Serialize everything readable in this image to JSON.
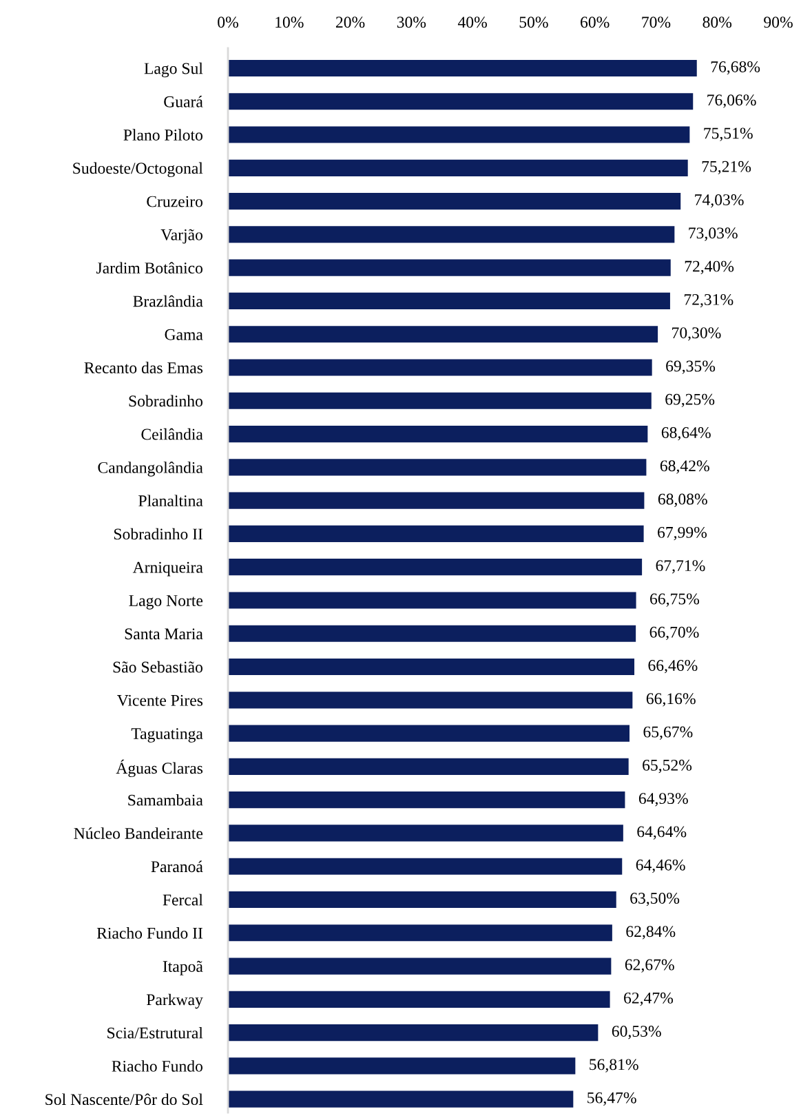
{
  "chart_data": {
    "type": "bar",
    "orientation": "horizontal",
    "categories": [
      "Lago Sul",
      "Guará",
      "Plano Piloto",
      "Sudoeste/Octogonal",
      "Cruzeiro",
      "Varjão",
      "Jardim Botânico",
      "Brazlândia",
      "Gama",
      "Recanto das Emas",
      "Sobradinho",
      "Ceilândia",
      "Candangolândia",
      "Planaltina",
      "Sobradinho II",
      "Arniqueira",
      "Lago Norte",
      "Santa Maria",
      "São Sebastião",
      "Vicente Pires",
      "Taguatinga",
      "Águas Claras",
      "Samambaia",
      "Núcleo Bandeirante",
      "Paranoá",
      "Fercal",
      "Riacho Fundo II",
      "Itapoã",
      "Parkway",
      "Scia/Estrutural",
      "Riacho Fundo",
      "Sol Nascente/Pôr do Sol"
    ],
    "values": [
      76.68,
      76.06,
      75.51,
      75.21,
      74.03,
      73.03,
      72.4,
      72.31,
      70.3,
      69.35,
      69.25,
      68.64,
      68.42,
      68.08,
      67.99,
      67.71,
      66.75,
      66.7,
      66.46,
      66.16,
      65.67,
      65.52,
      64.93,
      64.64,
      64.46,
      63.5,
      62.84,
      62.67,
      62.47,
      60.53,
      56.81,
      56.47
    ],
    "value_labels": [
      "76,68%",
      "76,06%",
      "75,51%",
      "75,21%",
      "74,03%",
      "73,03%",
      "72,40%",
      "72,31%",
      "70,30%",
      "69,35%",
      "69,25%",
      "68,64%",
      "68,42%",
      "68,08%",
      "67,99%",
      "67,71%",
      "66,75%",
      "66,70%",
      "66,46%",
      "66,16%",
      "65,67%",
      "65,52%",
      "64,93%",
      "64,64%",
      "64,46%",
      "63,50%",
      "62,84%",
      "62,67%",
      "62,47%",
      "60,53%",
      "56,81%",
      "56,47%"
    ],
    "color": "#0c1f5e",
    "xlim": [
      0,
      90
    ],
    "xticks": [
      {
        "value": 0,
        "label": "0%"
      },
      {
        "value": 10,
        "label": "10%"
      },
      {
        "value": 20,
        "label": "20%"
      },
      {
        "value": 30,
        "label": "30%"
      },
      {
        "value": 40,
        "label": "40%"
      },
      {
        "value": 50,
        "label": "50%"
      },
      {
        "value": 60,
        "label": "60%"
      },
      {
        "value": 70,
        "label": "70%"
      },
      {
        "value": 80,
        "label": "80%"
      },
      {
        "value": 90,
        "label": "90%"
      }
    ],
    "grid": false
  }
}
